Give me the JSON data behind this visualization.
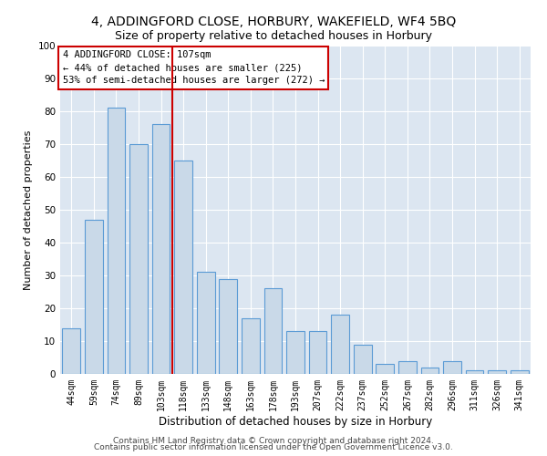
{
  "title1": "4, ADDINGFORD CLOSE, HORBURY, WAKEFIELD, WF4 5BQ",
  "title2": "Size of property relative to detached houses in Horbury",
  "xlabel": "Distribution of detached houses by size in Horbury",
  "ylabel": "Number of detached properties",
  "categories": [
    "44sqm",
    "59sqm",
    "74sqm",
    "89sqm",
    "103sqm",
    "118sqm",
    "133sqm",
    "148sqm",
    "163sqm",
    "178sqm",
    "193sqm",
    "207sqm",
    "222sqm",
    "237sqm",
    "252sqm",
    "267sqm",
    "282sqm",
    "296sqm",
    "311sqm",
    "326sqm",
    "341sqm"
  ],
  "values": [
    14,
    47,
    81,
    70,
    76,
    65,
    31,
    29,
    17,
    26,
    13,
    13,
    18,
    9,
    3,
    4,
    2,
    4,
    1,
    1,
    1
  ],
  "bar_color": "#c9d9e8",
  "bar_edge_color": "#5b9bd5",
  "vline_x": 4.5,
  "vline_color": "#cc0000",
  "annotation_text": "4 ADDINGFORD CLOSE: 107sqm\n← 44% of detached houses are smaller (225)\n53% of semi-detached houses are larger (272) →",
  "annotation_box_color": "#ffffff",
  "annotation_box_edge": "#cc0000",
  "footer1": "Contains HM Land Registry data © Crown copyright and database right 2024.",
  "footer2": "Contains public sector information licensed under the Open Government Licence v3.0.",
  "plot_bg_color": "#dce6f1",
  "ylim": [
    0,
    100
  ],
  "title1_fontsize": 10,
  "title2_fontsize": 9,
  "xlabel_fontsize": 8.5,
  "ylabel_fontsize": 8,
  "tick_fontsize": 7,
  "annotation_fontsize": 7.5,
  "footer_fontsize": 6.5
}
